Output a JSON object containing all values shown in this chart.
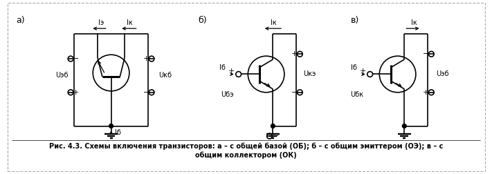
{
  "label_a": "а)",
  "label_b": "б)",
  "label_v": "в)",
  "caption1": "Рис. 4.3. Схемы включения транзисторов: а – с общей базой (ОБ); б – с общим эмиттером (ОЭ); в –",
  "caption2": "с общим коллектором (ОК)",
  "cap_line1": "Рис. 4.3. Схемы включения транзисторов: а – с общей базой (ОБ); б – с общим эмиттером (ОЭ); в – с",
  "cap_line2": "общим коллектором (ОК)",
  "bg": "#ffffff"
}
